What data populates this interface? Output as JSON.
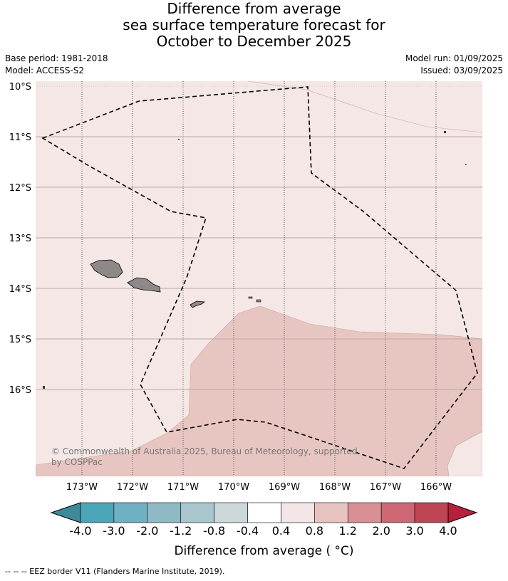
{
  "title": {
    "line1": "Difference from average",
    "line2": "sea surface temperature forecast for",
    "line3": "October to December 2025"
  },
  "meta": {
    "base_period": "Base period: 1981-2018",
    "model": "Model: ACCESS-S2",
    "model_run": "Model run: 01/09/2025",
    "issued": "Issued: 03/09/2025"
  },
  "map": {
    "lat_labels": [
      "10°S",
      "11°S",
      "12°S",
      "13°S",
      "14°S",
      "15°S",
      "16°S"
    ],
    "lon_labels": [
      "173°W",
      "172°W",
      "171°W",
      "170°W",
      "169°W",
      "168°W",
      "167°W",
      "166°W"
    ],
    "copyright": "© Commonwealth of Australia 2025, Bureau of Meteorology, supported",
    "copyright2": "by COSPPac",
    "land_color": "#8f8888",
    "ocean_anomaly_0_4_0_8": "#f4e7e6",
    "ocean_anomaly_0_8_1_2": "#e7c6c2"
  },
  "colorbar": {
    "title": "Difference from average ( °C)",
    "labels": [
      "-4.0",
      "-3.0",
      "-2.0",
      "-1.2",
      "-0.8",
      "-0.4",
      "0.4",
      "0.8",
      "1.2",
      "2.0",
      "3.0",
      "4.0"
    ],
    "colors": [
      "#3f8a99",
      "#4aa6b7",
      "#6fb1c1",
      "#8fb9c5",
      "#a8c6cc",
      "#ccd8da",
      "#ffffff",
      "#f4e6e6",
      "#e7c3bf",
      "#d98f95",
      "#cd6773",
      "#c04554",
      "#b5203a"
    ]
  },
  "footer": "--  --  -- EEZ border V11 (Flanders Marine Institute, 2019)."
}
